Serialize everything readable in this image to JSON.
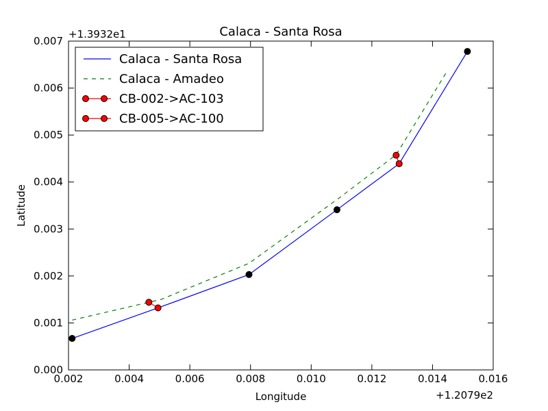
{
  "chart_data": {
    "type": "line",
    "title": "Calaca - Santa Rosa",
    "xlabel": "Longitude",
    "ylabel": "Latitude",
    "x_offset_label": "+1.2079e2",
    "y_offset_label": "+1.3932e1",
    "xlim": [
      0.002,
      0.016
    ],
    "ylim": [
      0.0,
      0.007
    ],
    "xticks": [
      0.002,
      0.004,
      0.006,
      0.008,
      0.01,
      0.012,
      0.014,
      0.016
    ],
    "xtick_labels": [
      "0.002",
      "0.004",
      "0.006",
      "0.008",
      "0.010",
      "0.012",
      "0.014",
      "0.016"
    ],
    "yticks": [
      0.0,
      0.001,
      0.002,
      0.003,
      0.004,
      0.005,
      0.006,
      0.007
    ],
    "ytick_labels": [
      "0.000",
      "0.001",
      "0.002",
      "0.003",
      "0.004",
      "0.005",
      "0.006",
      "0.007"
    ],
    "grid": false,
    "legend_position": "top-left",
    "series": [
      {
        "name": "Calaca - Santa Rosa",
        "style": "solid",
        "color": "#0000ff",
        "x": [
          0.00212,
          0.00495,
          0.00795,
          0.01085,
          0.0129,
          0.01515
        ],
        "y": [
          0.00067,
          0.00132,
          0.00203,
          0.00341,
          0.00439,
          0.00678
        ]
      },
      {
        "name": "Calaca - Amadeo",
        "style": "dashed",
        "color": "#008000",
        "x": [
          0.00212,
          0.00505,
          0.00795,
          0.0109,
          0.0128,
          0.0145
        ],
        "y": [
          0.00106,
          0.0015,
          0.00227,
          0.00365,
          0.00458,
          0.00638
        ]
      },
      {
        "name": "CB-002->AC-103",
        "style": "marker-line",
        "color": "#ff0000",
        "x": [
          0.00465,
          0.00495
        ],
        "y": [
          0.00144,
          0.00132
        ]
      },
      {
        "name": "CB-005->AC-100",
        "style": "marker-line",
        "color": "#ff0000",
        "x": [
          0.0128,
          0.0129
        ],
        "y": [
          0.00457,
          0.00439
        ]
      }
    ],
    "black_points": {
      "color": "#000000",
      "x": [
        0.00212,
        0.00795,
        0.01085,
        0.01515
      ],
      "y": [
        0.00067,
        0.00203,
        0.00341,
        0.00678
      ]
    }
  }
}
